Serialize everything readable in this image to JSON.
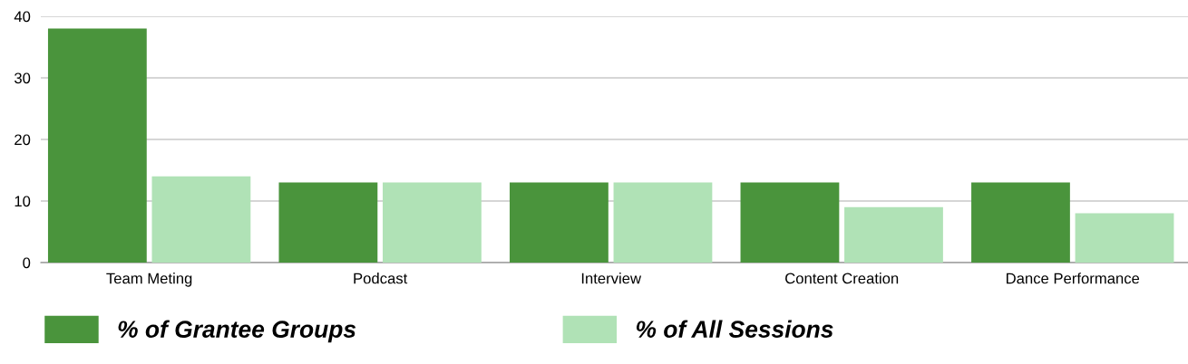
{
  "chart_data": {
    "type": "bar",
    "categories": [
      "Team Meting",
      "Podcast",
      "Interview",
      "Content Creation",
      "Dance Performance"
    ],
    "series": [
      {
        "name": "% of Grantee Groups",
        "color": "#4a943c",
        "values": [
          38,
          13,
          13,
          13,
          13
        ]
      },
      {
        "name": "% of All Sessions",
        "color": "#b0e2b6",
        "values": [
          14,
          13,
          13,
          9,
          8
        ]
      }
    ],
    "ylim": [
      0,
      40
    ],
    "yticks": [
      0,
      10,
      20,
      30,
      40
    ],
    "grid": "y",
    "legend": "bottom left"
  }
}
